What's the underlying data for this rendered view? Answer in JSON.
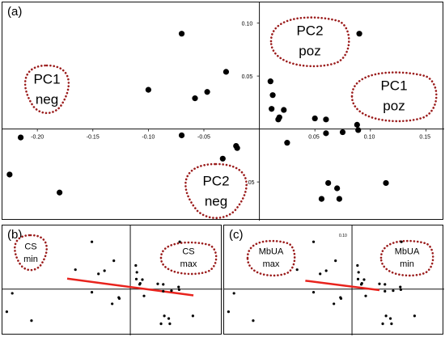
{
  "chart_data": [
    {
      "type": "scatter",
      "panel": "(a)",
      "xlim": [
        -0.23,
        0.165
      ],
      "ylim": [
        -0.085,
        0.118
      ],
      "x_ticks": [
        -0.2,
        -0.15,
        -0.1,
        -0.05,
        0.05,
        0.1,
        0.15
      ],
      "x_tick_labels": [
        "-0.20",
        "-0.15",
        "-0.10",
        "-0.05",
        "0.05",
        "0.10",
        "0.15"
      ],
      "y_ticks": [
        0.1,
        0.05,
        -0.05
      ],
      "y_tick_labels": [
        "0.10",
        "0.05",
        "-0.05"
      ],
      "points": {
        "x": [
          -0.07,
          -0.03,
          -0.1,
          -0.058,
          -0.047,
          -0.07,
          -0.033,
          -0.02,
          -0.021,
          -0.215,
          -0.225,
          -0.18,
          0.01,
          0.012,
          0.011,
          0.018,
          0.022,
          0.017,
          0.025,
          0.05,
          0.06,
          0.075,
          0.088,
          0.089,
          0.06,
          0.062,
          0.07,
          0.056,
          0.072,
          0.09,
          0.114
        ],
        "y": [
          0.09,
          0.054,
          0.037,
          0.029,
          0.035,
          -0.006,
          -0.028,
          -0.018,
          -0.016,
          -0.008,
          -0.043,
          -0.06,
          0.045,
          0.032,
          0.019,
          0.011,
          0.018,
          0.009,
          -0.013,
          0.01,
          0.009,
          -0.003,
          0.004,
          -0.001,
          -0.004,
          -0.051,
          -0.056,
          -0.066,
          -0.066,
          0.09,
          -0.051
        ]
      },
      "annotations": [
        {
          "line1": "PC1",
          "line2": "neg"
        },
        {
          "line1": "PC2",
          "line2": "poz"
        },
        {
          "line1": "PC1",
          "line2": "poz"
        },
        {
          "line1": "PC2",
          "line2": "neg"
        }
      ]
    },
    {
      "type": "scatter",
      "panel": "(b)",
      "xlim": [
        -0.23,
        0.165
      ],
      "ylim": [
        -0.085,
        0.118
      ],
      "points": {
        "x": [
          -0.07,
          -0.03,
          -0.1,
          -0.058,
          -0.047,
          -0.07,
          -0.033,
          -0.02,
          -0.021,
          -0.215,
          -0.225,
          -0.18,
          0.01,
          0.012,
          0.011,
          0.018,
          0.022,
          0.017,
          0.025,
          0.05,
          0.06,
          0.075,
          0.088,
          0.089,
          0.06,
          0.062,
          0.07,
          0.056,
          0.072,
          0.09,
          0.114
        ],
        "y": [
          0.09,
          0.054,
          0.037,
          0.029,
          0.035,
          -0.006,
          -0.028,
          -0.018,
          -0.016,
          -0.008,
          -0.043,
          -0.06,
          0.045,
          0.032,
          0.019,
          0.011,
          0.018,
          0.009,
          -0.013,
          0.01,
          0.009,
          -0.003,
          0.004,
          -0.001,
          -0.004,
          -0.051,
          -0.056,
          -0.066,
          -0.066,
          0.09,
          -0.051
        ]
      },
      "trend": {
        "color": "#e8231d",
        "x": [
          -0.115,
          0.115
        ],
        "y": [
          0.02,
          -0.012
        ]
      },
      "annotations": [
        {
          "line1": "CS",
          "line2": "min"
        },
        {
          "line1": "CS",
          "line2": "max"
        }
      ]
    },
    {
      "type": "scatter",
      "panel": "(c)",
      "xlim": [
        -0.23,
        0.165
      ],
      "ylim": [
        -0.085,
        0.118
      ],
      "y_tick_labels": [
        "0.10"
      ],
      "points": {
        "x": [
          -0.07,
          -0.03,
          -0.1,
          -0.058,
          -0.047,
          -0.07,
          -0.033,
          -0.02,
          -0.021,
          -0.215,
          -0.225,
          -0.18,
          0.01,
          0.012,
          0.011,
          0.018,
          0.022,
          0.017,
          0.025,
          0.05,
          0.06,
          0.075,
          0.088,
          0.089,
          0.06,
          0.062,
          0.07,
          0.056,
          0.072,
          0.09,
          0.114
        ],
        "y": [
          0.09,
          0.054,
          0.037,
          0.029,
          0.035,
          -0.006,
          -0.028,
          -0.018,
          -0.016,
          -0.008,
          -0.043,
          -0.06,
          0.045,
          0.032,
          0.019,
          0.011,
          0.018,
          0.009,
          -0.013,
          0.01,
          0.009,
          -0.003,
          0.004,
          -0.001,
          -0.004,
          -0.051,
          -0.056,
          -0.066,
          -0.066,
          0.09,
          -0.051
        ]
      },
      "trend": {
        "color": "#e8231d",
        "x": [
          -0.085,
          0.05
        ],
        "y": [
          0.016,
          -0.002
        ]
      },
      "annotations": [
        {
          "line1": "MbUA",
          "line2": "max"
        },
        {
          "line1": "MbUA",
          "line2": "min"
        }
      ]
    }
  ],
  "colors": {
    "point": "#000000",
    "axis": "#111111",
    "blob_outline": "#9b1c1c",
    "trend": "#e8231d"
  }
}
